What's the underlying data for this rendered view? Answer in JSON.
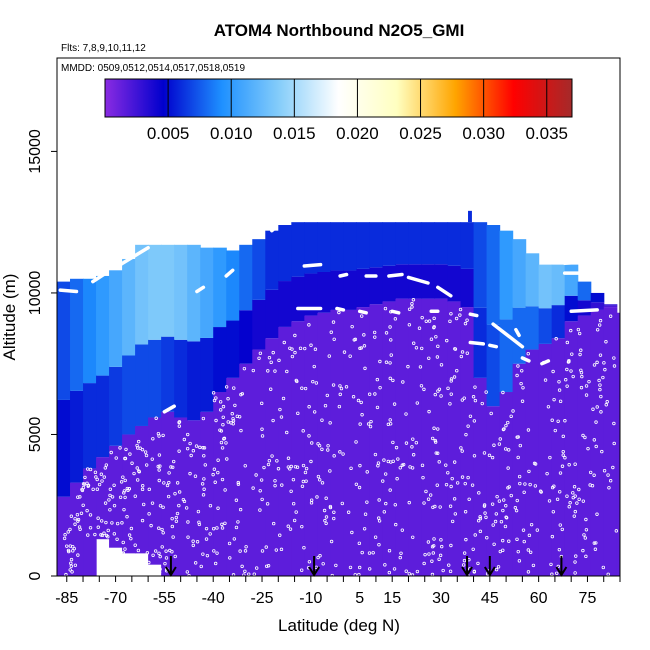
{
  "chart_data": {
    "type": "heatmap",
    "title": "ATOM4 Northbound N2O5_GMI",
    "subtitle_flights": "Flts: 7,8,9,10,11,12",
    "subtitle_dates": "MMDD: 0509,0512,0514,0517,0518,0519",
    "xlabel": "Latitude (deg N)",
    "ylabel": "Altitude (m)",
    "xlim": [
      -88,
      85
    ],
    "ylim": [
      0,
      18300
    ],
    "x_tick_labels": [
      -85,
      -70,
      -55,
      -40,
      -25,
      -10,
      5,
      15,
      30,
      45,
      60,
      75
    ],
    "x_minor_ticks": [
      -85,
      -80,
      -75,
      -70,
      -65,
      -60,
      -55,
      -50,
      -45,
      -40,
      -35,
      -30,
      -25,
      -20,
      -15,
      -10,
      -5,
      0,
      5,
      10,
      15,
      20,
      25,
      30,
      35,
      40,
      45,
      50,
      55,
      60,
      65,
      70,
      75,
      80,
      85
    ],
    "y_tick_labels": [
      0,
      5000,
      10000,
      15000
    ],
    "colorbar": {
      "min": 0,
      "max": 0.037,
      "ticks": [
        0.005,
        0.01,
        0.015,
        0.02,
        0.025,
        0.03,
        0.035
      ],
      "tick_labels": [
        "0.005",
        "0.010",
        "0.015",
        "0.020",
        "0.025",
        "0.030",
        "0.035"
      ],
      "colors": [
        "#8a2be2",
        "#0000cd",
        "#1e90ff",
        "#87cefa",
        "#ffffff",
        "#ffffc0",
        "#ffa500",
        "#ff0000",
        "#a52a2a"
      ]
    },
    "field_value_background": 0.0015,
    "columns": [
      {
        "lat": -88,
        "top": 10400,
        "low_top": 2800,
        "mid": 0.005,
        "high_top": 10400,
        "high": 0.007
      },
      {
        "lat": -84,
        "top": 10500,
        "low_top": 3300,
        "mid": 0.0055,
        "high_top": 10500,
        "high": 0.008
      },
      {
        "lat": -80,
        "top": 10500,
        "low_top": 3800,
        "mid": 0.006,
        "high_top": 10500,
        "high": 0.009
      },
      {
        "lat": -76,
        "top": 10600,
        "low_top": 4200,
        "mid": 0.006,
        "high_top": 10600,
        "high": 0.01
      },
      {
        "lat": -72,
        "top": 10800,
        "low_top": 4600,
        "mid": 0.0065,
        "high_top": 10800,
        "high": 0.011
      },
      {
        "lat": -68,
        "top": 11200,
        "low_top": 5000,
        "mid": 0.007,
        "high_top": 11200,
        "high": 0.012
      },
      {
        "lat": -64,
        "top": 11700,
        "low_top": 5300,
        "mid": 0.007,
        "high_top": 11700,
        "high": 0.013
      },
      {
        "lat": -60,
        "top": 11700,
        "low_top": 5600,
        "mid": 0.007,
        "high_top": 11700,
        "high": 0.0135
      },
      {
        "lat": -56,
        "top": 11700,
        "low_top": 5800,
        "mid": 0.0065,
        "high_top": 11700,
        "high": 0.0135
      },
      {
        "lat": -52,
        "top": 11700,
        "low_top": 5600,
        "mid": 0.006,
        "high_top": 11700,
        "high": 0.013
      },
      {
        "lat": -48,
        "top": 11700,
        "low_top": 5500,
        "mid": 0.0055,
        "high_top": 11700,
        "high": 0.012
      },
      {
        "lat": -44,
        "top": 11600,
        "low_top": 5800,
        "mid": 0.0055,
        "high_top": 11600,
        "high": 0.011
      },
      {
        "lat": -40,
        "top": 11600,
        "low_top": 6500,
        "mid": 0.005,
        "high_top": 11600,
        "high": 0.01
      },
      {
        "lat": -36,
        "top": 11500,
        "low_top": 7000,
        "mid": 0.005,
        "high_top": 11500,
        "high": 0.009
      },
      {
        "lat": -32,
        "top": 11700,
        "low_top": 7500,
        "mid": 0.0045,
        "high_top": 11700,
        "high": 0.008
      },
      {
        "lat": -28,
        "top": 11900,
        "low_top": 8000,
        "mid": 0.004,
        "high_top": 11900,
        "high": 0.007
      },
      {
        "lat": -24,
        "top": 12200,
        "low_top": 8400,
        "mid": 0.004,
        "high_top": 12200,
        "high": 0.006
      },
      {
        "lat": -20,
        "top": 12400,
        "low_top": 8800,
        "mid": 0.004,
        "high_top": 12400,
        "high": 0.006
      },
      {
        "lat": -16,
        "top": 12500,
        "low_top": 9000,
        "mid": 0.004,
        "high_top": 12500,
        "high": 0.006
      },
      {
        "lat": -12,
        "top": 12500,
        "low_top": 9200,
        "mid": 0.004,
        "high_top": 12500,
        "high": 0.006
      },
      {
        "lat": -8,
        "top": 12500,
        "low_top": 9300,
        "mid": 0.004,
        "high_top": 12500,
        "high": 0.006
      },
      {
        "lat": -4,
        "top": 12500,
        "low_top": 9400,
        "mid": 0.004,
        "high_top": 12500,
        "high": 0.006
      },
      {
        "lat": 0,
        "top": 12500,
        "low_top": 9400,
        "mid": 0.004,
        "high_top": 12500,
        "high": 0.006
      },
      {
        "lat": 4,
        "top": 12500,
        "low_top": 9500,
        "mid": 0.004,
        "high_top": 12500,
        "high": 0.006
      },
      {
        "lat": 8,
        "top": 12500,
        "low_top": 9600,
        "mid": 0.004,
        "high_top": 12500,
        "high": 0.006
      },
      {
        "lat": 12,
        "top": 12500,
        "low_top": 9700,
        "mid": 0.004,
        "high_top": 12500,
        "high": 0.006
      },
      {
        "lat": 16,
        "top": 12500,
        "low_top": 9800,
        "mid": 0.004,
        "high_top": 12500,
        "high": 0.006
      },
      {
        "lat": 20,
        "top": 12500,
        "low_top": 9800,
        "mid": 0.004,
        "high_top": 12500,
        "high": 0.006
      },
      {
        "lat": 24,
        "top": 12500,
        "low_top": 9800,
        "mid": 0.004,
        "high_top": 12500,
        "high": 0.006
      },
      {
        "lat": 28,
        "top": 12500,
        "low_top": 9800,
        "mid": 0.004,
        "high_top": 12500,
        "high": 0.006
      },
      {
        "lat": 32,
        "top": 12500,
        "low_top": 9700,
        "mid": 0.004,
        "high_top": 12500,
        "high": 0.006
      },
      {
        "lat": 36,
        "top": 12500,
        "low_top": 9500,
        "mid": 0.004,
        "high_top": 12500,
        "high": 0.006
      },
      {
        "lat": 40,
        "top": 12500,
        "low_top": 7000,
        "mid": 0.006,
        "high_top": 12500,
        "high": 0.007
      },
      {
        "lat": 44,
        "top": 12400,
        "low_top": 6000,
        "mid": 0.007,
        "high_top": 12400,
        "high": 0.008
      },
      {
        "lat": 48,
        "top": 12200,
        "low_top": 6500,
        "mid": 0.008,
        "high_top": 12200,
        "high": 0.01
      },
      {
        "lat": 52,
        "top": 11900,
        "low_top": 7500,
        "mid": 0.008,
        "high_top": 11900,
        "high": 0.011
      },
      {
        "lat": 56,
        "top": 11400,
        "low_top": 8000,
        "mid": 0.008,
        "high_top": 11400,
        "high": 0.012
      },
      {
        "lat": 60,
        "top": 11000,
        "low_top": 8200,
        "mid": 0.007,
        "high_top": 11000,
        "high": 0.013
      },
      {
        "lat": 64,
        "top": 11000,
        "low_top": 8400,
        "mid": 0.006,
        "high_top": 11000,
        "high": 0.0125
      },
      {
        "lat": 68,
        "top": 11000,
        "low_top": 9000,
        "mid": 0.005,
        "high_top": 11000,
        "high": 0.011
      },
      {
        "lat": 72,
        "top": 10400,
        "low_top": 9200,
        "mid": 0.004,
        "high_top": 10400,
        "high": 0.008
      },
      {
        "lat": 76,
        "top": 10000,
        "low_top": 9400,
        "mid": 0.003,
        "high_top": 10000,
        "high": 0.005
      },
      {
        "lat": 80,
        "top": 9600,
        "low_top": 9500,
        "mid": 0.002,
        "high_top": 9600,
        "high": 0.003
      },
      {
        "lat": 84,
        "top": 9300,
        "low_top": 9300,
        "mid": 0.0015,
        "high_top": 9300,
        "high": 0.002
      }
    ],
    "bottom_edge": [
      {
        "lat": -88,
        "bottom": 0
      },
      {
        "lat": -80,
        "bottom": 1300
      },
      {
        "lat": -76,
        "bottom": 1000
      },
      {
        "lat": -71,
        "bottom": 800
      },
      {
        "lat": -64,
        "bottom": 400
      },
      {
        "lat": -60,
        "bottom": 0
      },
      {
        "lat": 85,
        "bottom": 0
      }
    ],
    "flight_track_segments": [
      [
        [
          -87,
          10100
        ],
        [
          -82,
          10050
        ]
      ],
      [
        [
          -77,
          10400
        ],
        [
          -73,
          10700
        ]
      ],
      [
        [
          -70,
          10900
        ],
        [
          -60,
          11600
        ]
      ],
      [
        [
          -45,
          10050
        ],
        [
          -43,
          10200
        ]
      ],
      [
        [
          -36,
          10600
        ],
        [
          -34,
          10800
        ]
      ],
      [
        [
          -22,
          12200
        ],
        [
          -21,
          12300
        ]
      ],
      [
        [
          -12,
          10950
        ],
        [
          -7,
          11000
        ]
      ],
      [
        [
          -14,
          9450
        ],
        [
          -7,
          9450
        ]
      ],
      [
        [
          -2,
          9450
        ],
        [
          0,
          9400
        ]
      ],
      [
        [
          -1,
          10600
        ],
        [
          1,
          10650
        ]
      ],
      [
        [
          5,
          9350
        ],
        [
          7,
          9300
        ]
      ],
      [
        [
          7,
          10600
        ],
        [
          10,
          10600
        ]
      ],
      [
        [
          14,
          10600
        ],
        [
          18,
          10650
        ]
      ],
      [
        [
          15,
          9350
        ],
        [
          17,
          9300
        ]
      ],
      [
        [
          20,
          10550
        ],
        [
          26,
          10350
        ]
      ],
      [
        [
          27,
          9350
        ],
        [
          29,
          9350
        ]
      ],
      [
        [
          29,
          10200
        ],
        [
          33,
          9900
        ]
      ],
      [
        [
          39,
          9250
        ],
        [
          41,
          9200
        ]
      ],
      [
        [
          39,
          8250
        ],
        [
          43,
          8200
        ]
      ],
      [
        [
          45,
          8150
        ],
        [
          47,
          8100
        ]
      ],
      [
        [
          46,
          8900
        ],
        [
          55,
          8100
        ]
      ],
      [
        [
          53,
          8700
        ],
        [
          54,
          8500
        ]
      ],
      [
        [
          55,
          7700
        ],
        [
          57,
          7600
        ]
      ],
      [
        [
          61,
          7500
        ],
        [
          63,
          7600
        ]
      ],
      [
        [
          68,
          10700
        ],
        [
          74,
          10700
        ]
      ],
      [
        [
          68,
          11050
        ],
        [
          74,
          11100
        ]
      ],
      [
        [
          70,
          9350
        ],
        [
          78,
          9400
        ]
      ],
      [
        [
          -55,
          5800
        ],
        [
          -52,
          6000
        ]
      ]
    ],
    "arrow_latitudes": [
      -53,
      -9,
      38,
      45,
      67
    ],
    "sample_point_count": 900
  }
}
